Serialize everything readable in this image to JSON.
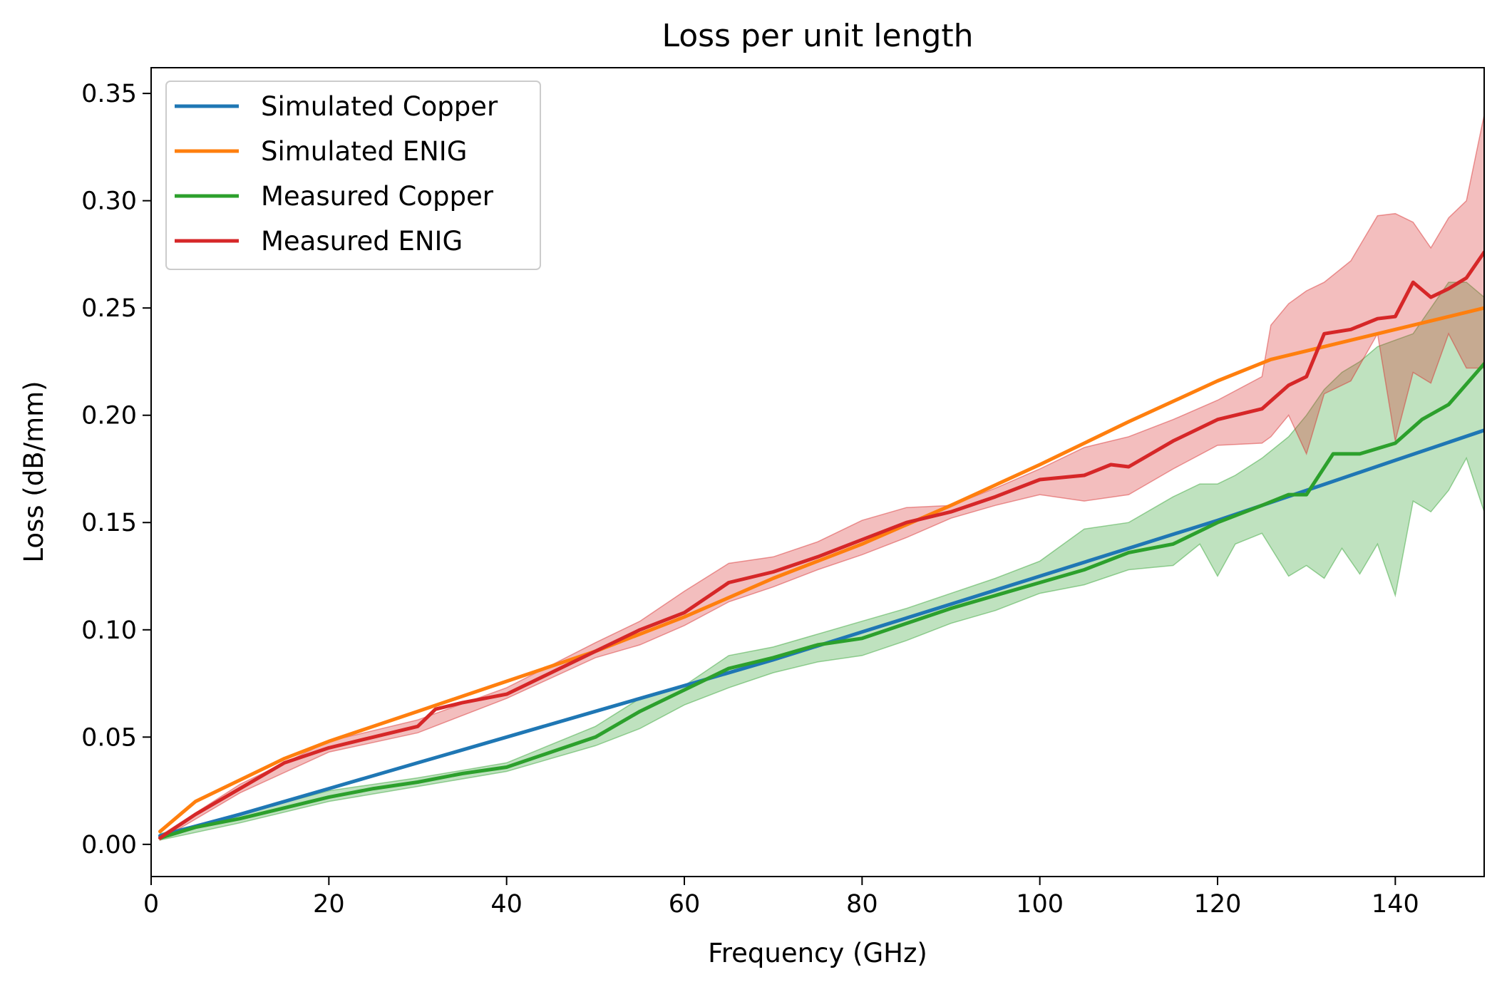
{
  "chart_data": {
    "type": "line",
    "title": "Loss per unit length",
    "xlabel": "Frequency (GHz)",
    "ylabel": "Loss (dB/mm)",
    "xlim": [
      0,
      150
    ],
    "ylim": [
      -0.015,
      0.362
    ],
    "xticks": [
      "0",
      "20",
      "40",
      "60",
      "80",
      "100",
      "120",
      "140"
    ],
    "xtick_values": [
      0,
      20,
      40,
      60,
      80,
      100,
      120,
      140
    ],
    "yticks": [
      "0.00",
      "0.05",
      "0.10",
      "0.15",
      "0.20",
      "0.25",
      "0.30",
      "0.35"
    ],
    "ytick_values": [
      0,
      0.05,
      0.1,
      0.15,
      0.2,
      0.25,
      0.3,
      0.35
    ],
    "grid": false,
    "legend_position": "top-left",
    "series": [
      {
        "name": "Simulated Copper",
        "color": "#1f77b4",
        "x": [
          1,
          10,
          20,
          30,
          40,
          50,
          60,
          70,
          80,
          90,
          100,
          110,
          120,
          130,
          140,
          150
        ],
        "y": [
          0.004,
          0.014,
          0.026,
          0.038,
          0.05,
          0.062,
          0.074,
          0.086,
          0.099,
          0.112,
          0.125,
          0.138,
          0.151,
          0.165,
          0.179,
          0.193
        ]
      },
      {
        "name": "Simulated ENIG",
        "color": "#ff7f0e",
        "x": [
          1,
          5,
          10,
          15,
          20,
          30,
          40,
          50,
          60,
          70,
          80,
          90,
          100,
          110,
          120,
          126,
          130,
          140,
          150
        ],
        "y": [
          0.006,
          0.02,
          0.03,
          0.04,
          0.048,
          0.062,
          0.076,
          0.09,
          0.106,
          0.124,
          0.14,
          0.158,
          0.177,
          0.197,
          0.216,
          0.226,
          0.23,
          0.24,
          0.25
        ]
      },
      {
        "name": "Measured Copper",
        "color": "#2ca02c",
        "x": [
          1,
          5,
          10,
          15,
          20,
          25,
          30,
          35,
          40,
          45,
          50,
          55,
          60,
          65,
          70,
          75,
          80,
          85,
          90,
          95,
          100,
          105,
          110,
          115,
          120,
          125,
          128,
          130,
          133,
          136,
          140,
          143,
          146,
          150
        ],
        "y": [
          0.003,
          0.008,
          0.012,
          0.017,
          0.022,
          0.026,
          0.029,
          0.033,
          0.036,
          0.043,
          0.05,
          0.062,
          0.072,
          0.082,
          0.087,
          0.093,
          0.096,
          0.103,
          0.11,
          0.116,
          0.122,
          0.128,
          0.136,
          0.14,
          0.15,
          0.158,
          0.163,
          0.163,
          0.182,
          0.182,
          0.187,
          0.198,
          0.205,
          0.224
        ]
      },
      {
        "name": "Measured ENIG",
        "color": "#d62728",
        "x": [
          1,
          5,
          10,
          15,
          20,
          25,
          30,
          32,
          35,
          40,
          45,
          50,
          55,
          60,
          65,
          70,
          75,
          80,
          85,
          90,
          95,
          100,
          105,
          108,
          110,
          115,
          120,
          125,
          128,
          130,
          132,
          135,
          138,
          140,
          142,
          144,
          146,
          148,
          150
        ],
        "y": [
          0.003,
          0.014,
          0.026,
          0.038,
          0.045,
          0.05,
          0.055,
          0.063,
          0.066,
          0.07,
          0.08,
          0.09,
          0.1,
          0.108,
          0.122,
          0.127,
          0.134,
          0.142,
          0.15,
          0.155,
          0.162,
          0.17,
          0.172,
          0.177,
          0.176,
          0.188,
          0.198,
          0.203,
          0.214,
          0.218,
          0.238,
          0.24,
          0.245,
          0.246,
          0.262,
          0.255,
          0.259,
          0.264,
          0.276
        ]
      }
    ],
    "bands": [
      {
        "series": "Measured Copper",
        "color": "#2ca02c",
        "x": [
          1,
          10,
          20,
          30,
          40,
          50,
          55,
          60,
          65,
          70,
          75,
          80,
          85,
          90,
          95,
          100,
          105,
          110,
          115,
          118,
          120,
          122,
          125,
          128,
          130,
          132,
          134,
          136,
          138,
          140,
          142,
          144,
          146,
          148,
          150
        ],
        "lower": [
          0.002,
          0.01,
          0.02,
          0.027,
          0.034,
          0.046,
          0.054,
          0.065,
          0.073,
          0.08,
          0.085,
          0.088,
          0.095,
          0.103,
          0.109,
          0.117,
          0.121,
          0.128,
          0.13,
          0.14,
          0.125,
          0.14,
          0.145,
          0.125,
          0.13,
          0.124,
          0.138,
          0.126,
          0.14,
          0.116,
          0.16,
          0.155,
          0.165,
          0.18,
          0.155
        ],
        "upper": [
          0.005,
          0.014,
          0.025,
          0.031,
          0.038,
          0.055,
          0.068,
          0.074,
          0.088,
          0.092,
          0.098,
          0.104,
          0.11,
          0.117,
          0.124,
          0.132,
          0.147,
          0.15,
          0.162,
          0.168,
          0.168,
          0.172,
          0.18,
          0.19,
          0.2,
          0.212,
          0.22,
          0.225,
          0.232,
          0.235,
          0.238,
          0.25,
          0.262,
          0.262,
          0.255
        ]
      },
      {
        "series": "Measured ENIG",
        "color": "#d62728",
        "x": [
          1,
          10,
          20,
          30,
          40,
          50,
          55,
          60,
          65,
          70,
          75,
          80,
          85,
          90,
          95,
          100,
          105,
          110,
          115,
          120,
          125,
          126,
          128,
          130,
          132,
          135,
          138,
          140,
          142,
          144,
          146,
          148,
          150
        ],
        "lower": [
          0.002,
          0.024,
          0.043,
          0.052,
          0.068,
          0.087,
          0.093,
          0.102,
          0.113,
          0.12,
          0.128,
          0.135,
          0.143,
          0.152,
          0.158,
          0.163,
          0.16,
          0.163,
          0.175,
          0.186,
          0.187,
          0.19,
          0.2,
          0.182,
          0.21,
          0.216,
          0.238,
          0.188,
          0.22,
          0.215,
          0.238,
          0.222,
          0.222
        ],
        "upper": [
          0.004,
          0.028,
          0.048,
          0.058,
          0.073,
          0.094,
          0.104,
          0.118,
          0.131,
          0.134,
          0.141,
          0.151,
          0.157,
          0.158,
          0.166,
          0.175,
          0.185,
          0.19,
          0.198,
          0.207,
          0.218,
          0.242,
          0.252,
          0.258,
          0.262,
          0.272,
          0.293,
          0.294,
          0.29,
          0.278,
          0.292,
          0.3,
          0.34
        ]
      }
    ]
  }
}
